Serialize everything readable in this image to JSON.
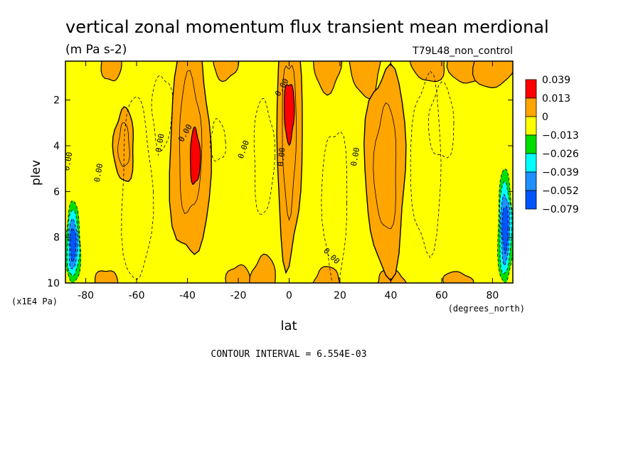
{
  "chart_data": {
    "type": "heatmap",
    "title": "vertical zonal momentum flux transient mean merdional",
    "units": "(m Pa s-2)",
    "dataset": "T79L48_non_control",
    "xlabel": "lat",
    "x_units": "(degrees_north)",
    "ylabel": "plev",
    "y_units": "(x1E4 Pa)",
    "xlim": [
      -88,
      88
    ],
    "ylim": [
      10,
      0.3
    ],
    "x_ticks": [
      "-80",
      "-60",
      "-40",
      "-20",
      "0",
      "20",
      "40",
      "60",
      "80"
    ],
    "x_tick_values": [
      -80,
      -60,
      -40,
      -20,
      0,
      20,
      40,
      60,
      80
    ],
    "y_ticks": [
      "2",
      "4",
      "6",
      "8",
      "10"
    ],
    "y_tick_values": [
      2,
      4,
      6,
      8,
      10
    ],
    "contour_interval_text": "CONTOUR INTERVAL = 6.554E-03",
    "legend": {
      "labels": [
        "0.039",
        "0.013",
        "0",
        "−0.013",
        "−0.026",
        "−0.039",
        "−0.052",
        "−0.079"
      ],
      "colors": [
        "#ff0000",
        "#ffa500",
        "#ffff00",
        "#00dd00",
        "#00ffff",
        "#1e90ff",
        "#0055ff"
      ]
    },
    "contour_labels": [
      "0.00",
      "-0.00",
      "0.00",
      "0.00",
      "0.00",
      "0.00",
      "0.00",
      "0.00",
      "0.00"
    ],
    "features": [
      {
        "kind": "orange",
        "lat": -39,
        "plev": 4.0,
        "lat_halfwidth": 8,
        "plev_halfwidth": 5.0
      },
      {
        "kind": "red",
        "lat": -37,
        "plev": 4.5,
        "lat_halfwidth": 2,
        "plev_halfwidth": 1.2
      },
      {
        "kind": "orange",
        "lat": 0,
        "plev": 3.5,
        "lat_halfwidth": 5,
        "plev_halfwidth": 5.5
      },
      {
        "kind": "red",
        "lat": 0,
        "plev": 2.5,
        "lat_halfwidth": 2,
        "plev_halfwidth": 1.3
      },
      {
        "kind": "orange",
        "lat": 38,
        "plev": 5.0,
        "lat_halfwidth": 8,
        "plev_halfwidth": 4.5
      },
      {
        "kind": "orange",
        "lat": -65,
        "plev": 4.0,
        "lat_halfwidth": 4,
        "plev_halfwidth": 1.6
      },
      {
        "kind": "negative",
        "lat": -85,
        "plev": 8.3,
        "lat_halfwidth": 3,
        "plev_halfwidth": 1.8
      },
      {
        "kind": "negative",
        "lat": 85,
        "plev": 7.6,
        "lat_halfwidth": 3,
        "plev_halfwidth": 2.5
      }
    ]
  }
}
